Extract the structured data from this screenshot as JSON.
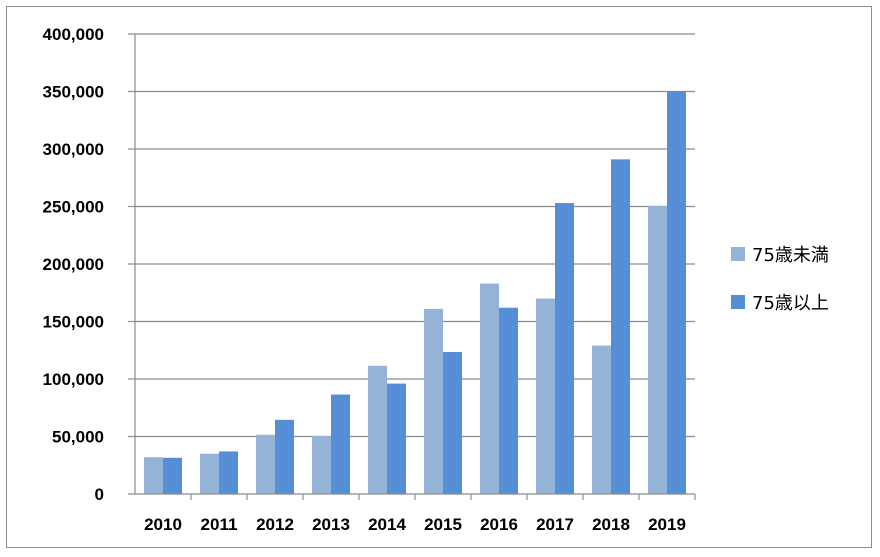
{
  "chart_data": {
    "type": "bar",
    "categories": [
      "2010",
      "2011",
      "2012",
      "2013",
      "2014",
      "2015",
      "2016",
      "2017",
      "2018",
      "2019"
    ],
    "series": [
      {
        "name": "75歳未満",
        "color": "#95b3d7",
        "values": [
          32000,
          35000,
          51500,
          50500,
          111500,
          161000,
          183000,
          170000,
          129000,
          250500
        ]
      },
      {
        "name": "75歳以上",
        "color": "#558ed5",
        "values": [
          31500,
          37000,
          64500,
          86500,
          96000,
          123500,
          162000,
          253000,
          291000,
          350000
        ]
      }
    ],
    "ylim": [
      0,
      400000
    ],
    "yticks": [
      "0",
      "50,000",
      "100,000",
      "150,000",
      "200,000",
      "250,000",
      "300,000",
      "350,000",
      "400,000"
    ],
    "title": "",
    "xlabel": "",
    "ylabel": "",
    "grid": true,
    "legend_position": "right"
  }
}
